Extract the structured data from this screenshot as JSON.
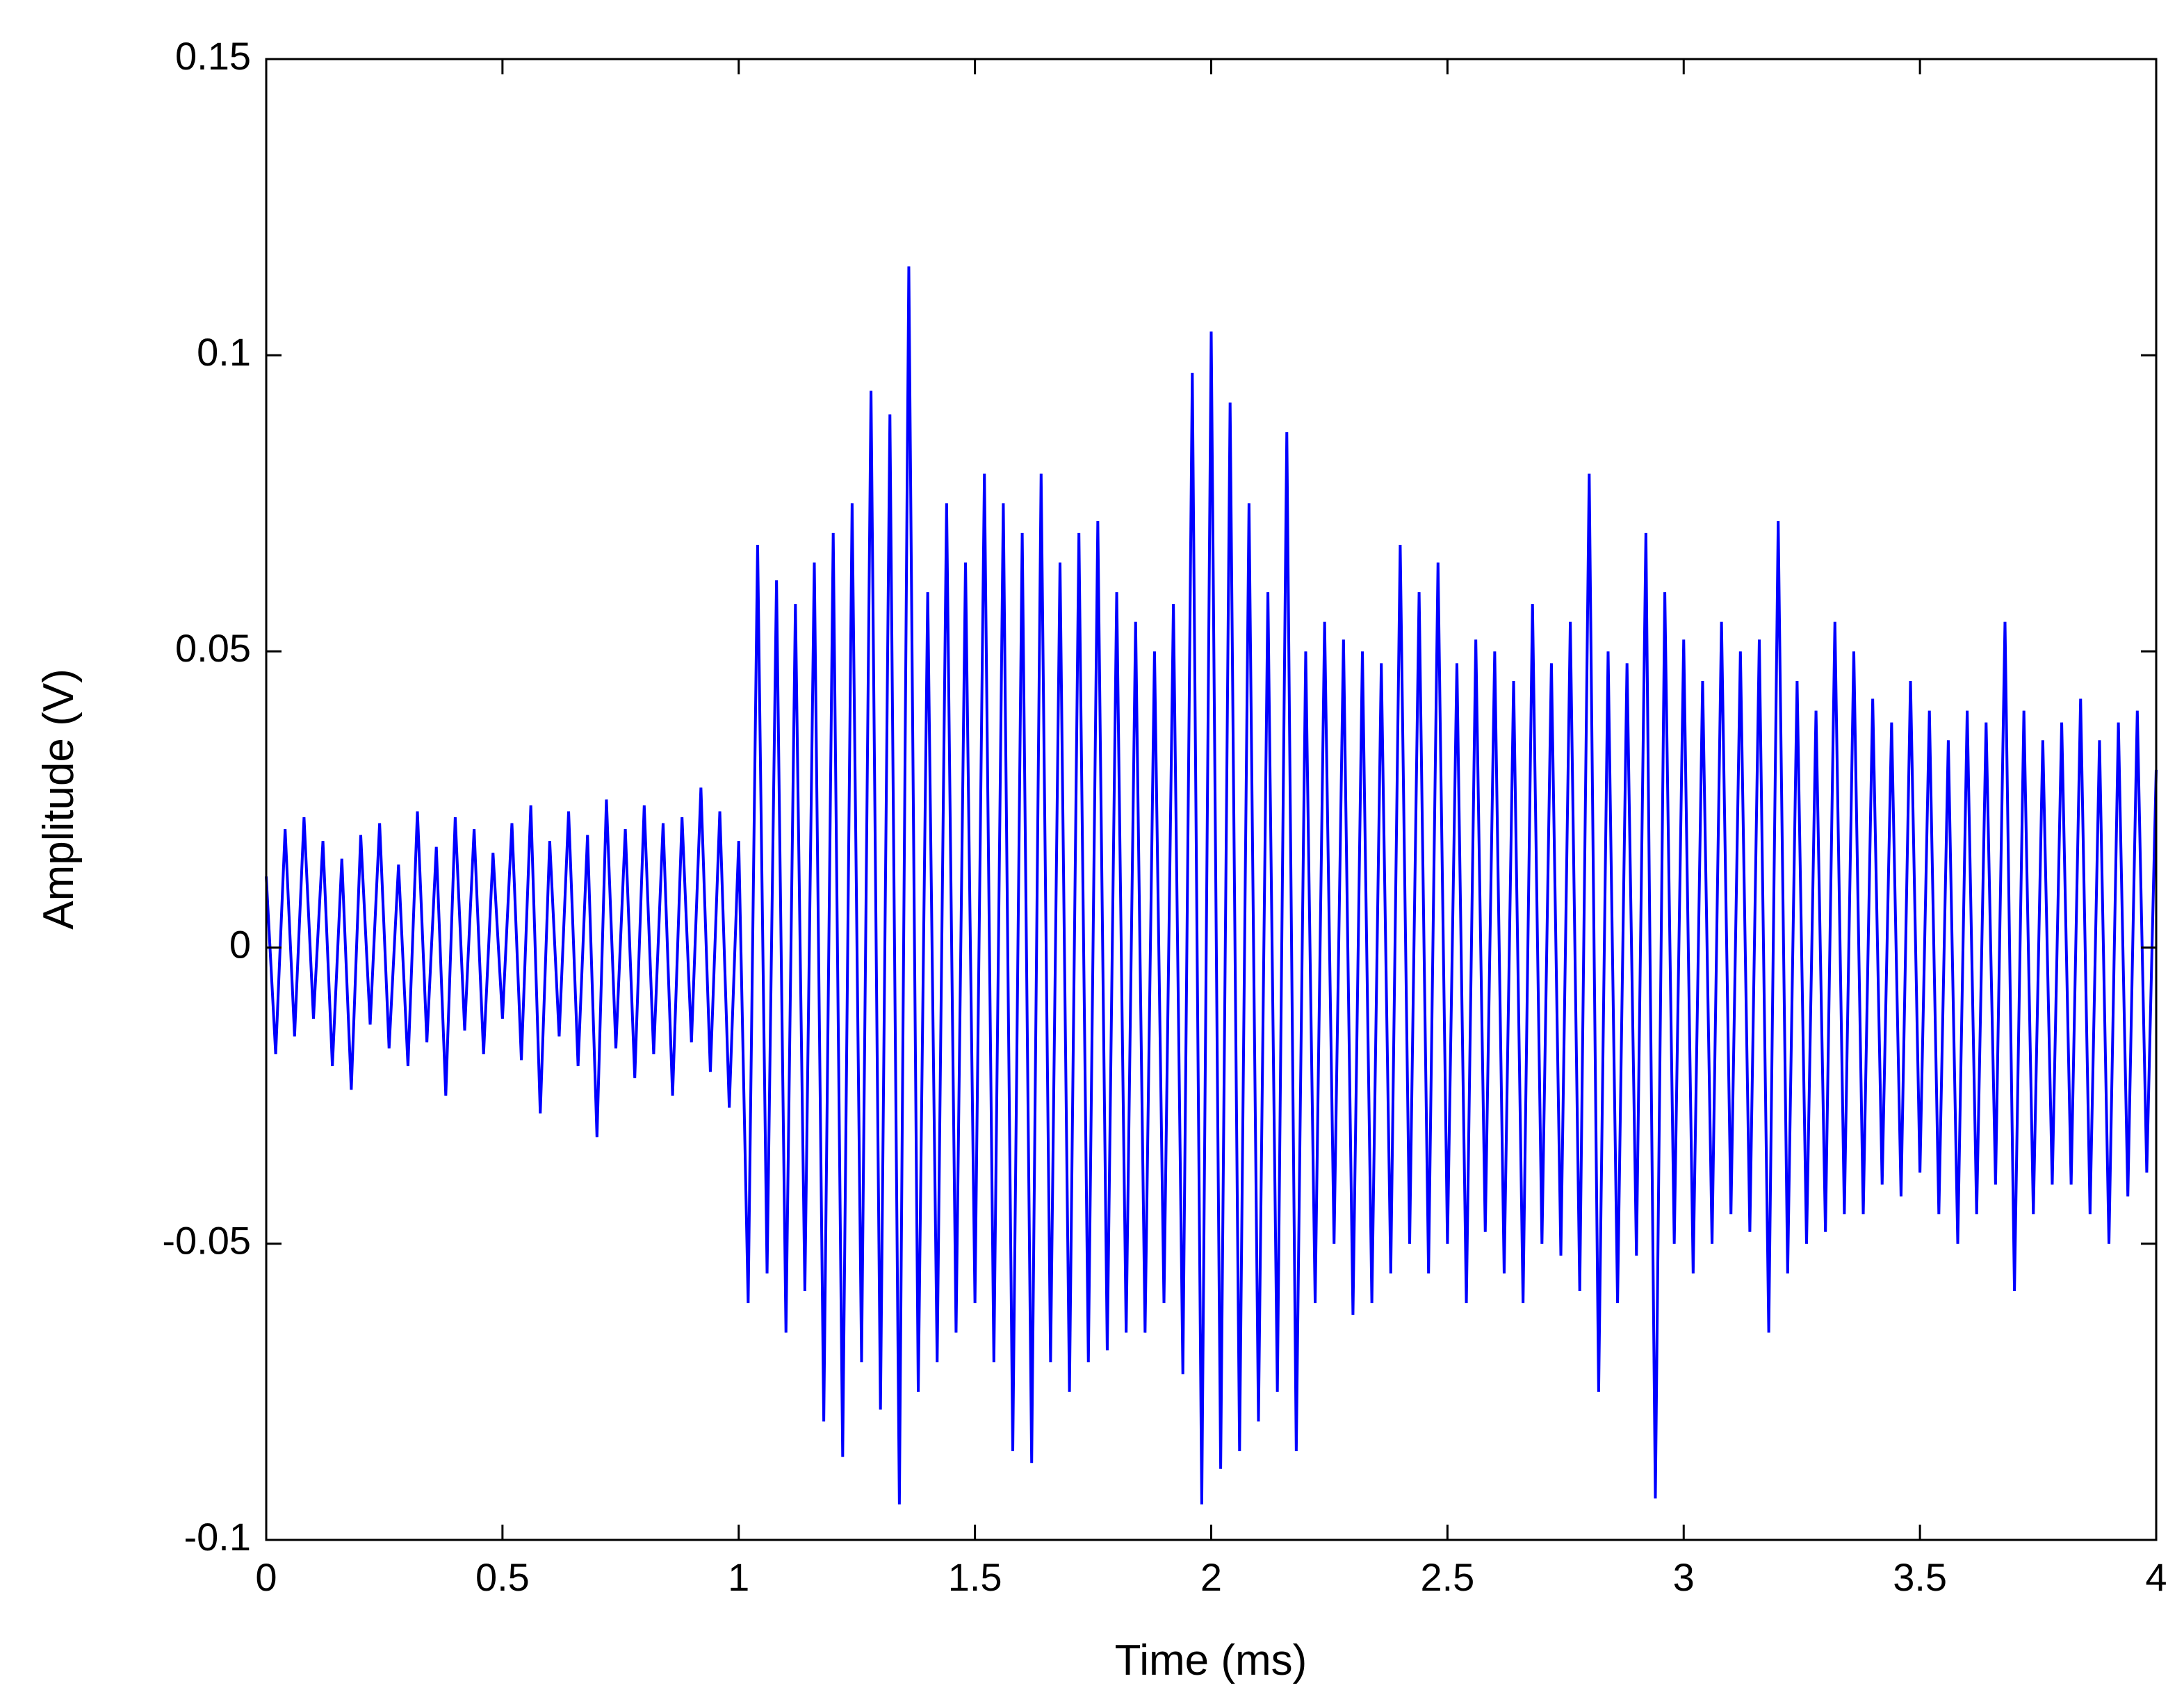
{
  "chart_data": {
    "type": "line",
    "xlabel": "Time (ms)",
    "ylabel": "Amplitude (V)",
    "x": [
      0,
      0.02,
      0.04,
      0.06,
      0.08,
      0.1,
      0.12,
      0.14,
      0.16,
      0.18,
      0.2,
      0.22,
      0.24,
      0.26,
      0.28,
      0.3,
      0.32,
      0.34,
      0.36,
      0.38,
      0.4,
      0.42,
      0.44,
      0.46,
      0.48,
      0.5,
      0.52,
      0.54,
      0.56,
      0.58,
      0.6,
      0.62,
      0.64,
      0.66,
      0.68,
      0.7,
      0.72,
      0.74,
      0.76,
      0.78,
      0.8,
      0.82,
      0.84,
      0.86,
      0.88,
      0.9,
      0.92,
      0.94,
      0.96,
      0.98,
      1,
      1.02,
      1.04,
      1.06,
      1.08,
      1.1,
      1.12,
      1.14,
      1.16,
      1.18,
      1.2,
      1.22,
      1.24,
      1.26,
      1.28,
      1.3,
      1.32,
      1.34,
      1.36,
      1.38,
      1.4,
      1.42,
      1.44,
      1.46,
      1.48,
      1.5,
      1.52,
      1.54,
      1.56,
      1.58,
      1.6,
      1.62,
      1.64,
      1.66,
      1.68,
      1.7,
      1.72,
      1.74,
      1.76,
      1.78,
      1.8,
      1.82,
      1.84,
      1.86,
      1.88,
      1.9,
      1.92,
      1.94,
      1.96,
      1.98,
      2,
      2.02,
      2.04,
      2.06,
      2.08,
      2.1,
      2.12,
      2.14,
      2.16,
      2.18,
      2.2,
      2.22,
      2.24,
      2.26,
      2.28,
      2.3,
      2.32,
      2.34,
      2.36,
      2.38,
      2.4,
      2.42,
      2.44,
      2.46,
      2.48,
      2.5,
      2.52,
      2.54,
      2.56,
      2.58,
      2.6,
      2.62,
      2.64,
      2.66,
      2.68,
      2.7,
      2.72,
      2.74,
      2.76,
      2.78,
      2.8,
      2.82,
      2.84,
      2.86,
      2.88,
      2.9,
      2.92,
      2.94,
      2.96,
      2.98,
      3,
      3.02,
      3.04,
      3.06,
      3.08,
      3.1,
      3.12,
      3.14,
      3.16,
      3.18,
      3.2,
      3.22,
      3.24,
      3.26,
      3.28,
      3.3,
      3.32,
      3.34,
      3.36,
      3.38,
      3.4,
      3.42,
      3.44,
      3.46,
      3.48,
      3.5,
      3.52,
      3.54,
      3.56,
      3.58,
      3.6,
      3.62,
      3.64,
      3.66,
      3.68,
      3.7,
      3.72,
      3.74,
      3.76,
      3.78,
      3.8,
      3.82,
      3.84,
      3.86,
      3.88,
      3.9,
      3.92,
      3.94,
      3.96,
      3.98,
      4
    ],
    "series": [
      {
        "color": "#0000ff",
        "values": [
          0.012,
          -0.018,
          0.02,
          -0.015,
          0.022,
          -0.012,
          0.018,
          -0.02,
          0.015,
          -0.024,
          0.019,
          -0.013,
          0.021,
          -0.017,
          0.014,
          -0.02,
          0.023,
          -0.016,
          0.017,
          -0.025,
          0.022,
          -0.014,
          0.02,
          -0.018,
          0.016,
          -0.012,
          0.021,
          -0.019,
          0.024,
          -0.028,
          0.018,
          -0.015,
          0.023,
          -0.02,
          0.019,
          -0.032,
          0.025,
          -0.017,
          0.02,
          -0.022,
          0.024,
          -0.018,
          0.021,
          -0.025,
          0.022,
          -0.016,
          0.027,
          -0.021,
          0.023,
          -0.027,
          0.018,
          -0.06,
          0.068,
          -0.055,
          0.062,
          -0.065,
          0.058,
          -0.058,
          0.065,
          -0.08,
          0.07,
          -0.086,
          0.075,
          -0.07,
          0.094,
          -0.078,
          0.09,
          -0.094,
          0.115,
          -0.075,
          0.06,
          -0.07,
          0.075,
          -0.065,
          0.065,
          -0.06,
          0.08,
          -0.07,
          0.075,
          -0.085,
          0.07,
          -0.087,
          0.08,
          -0.07,
          0.065,
          -0.075,
          0.07,
          -0.07,
          0.072,
          -0.068,
          0.06,
          -0.065,
          0.055,
          -0.065,
          0.05,
          -0.06,
          0.058,
          -0.072,
          0.097,
          -0.094,
          0.104,
          -0.088,
          0.092,
          -0.085,
          0.075,
          -0.08,
          0.06,
          -0.075,
          0.087,
          -0.085,
          0.05,
          -0.06,
          0.055,
          -0.05,
          0.052,
          -0.062,
          0.05,
          -0.06,
          0.048,
          -0.055,
          0.068,
          -0.05,
          0.06,
          -0.055,
          0.065,
          -0.05,
          0.048,
          -0.06,
          0.052,
          -0.048,
          0.05,
          -0.055,
          0.045,
          -0.06,
          0.058,
          -0.05,
          0.048,
          -0.052,
          0.055,
          -0.058,
          0.08,
          -0.075,
          0.05,
          -0.06,
          0.048,
          -0.052,
          0.07,
          -0.093,
          0.06,
          -0.05,
          0.052,
          -0.055,
          0.045,
          -0.05,
          0.055,
          -0.045,
          0.05,
          -0.048,
          0.052,
          -0.065,
          0.072,
          -0.055,
          0.045,
          -0.05,
          0.04,
          -0.048,
          0.055,
          -0.045,
          0.05,
          -0.045,
          0.042,
          -0.04,
          0.038,
          -0.042,
          0.045,
          -0.038,
          0.04,
          -0.045,
          0.035,
          -0.05,
          0.04,
          -0.045,
          0.038,
          -0.04,
          0.055,
          -0.058,
          0.04,
          -0.045,
          0.035,
          -0.04,
          0.038,
          -0.04,
          0.042,
          -0.045,
          0.035,
          -0.05,
          0.038,
          -0.042,
          0.04,
          -0.038,
          0.03
        ]
      }
    ],
    "xlim": [
      0,
      4
    ],
    "ylim": [
      -0.1,
      0.15
    ],
    "xticks": [
      0,
      0.5,
      1,
      1.5,
      2,
      2.5,
      3,
      3.5,
      4
    ],
    "yticks": [
      -0.1,
      -0.05,
      0,
      0.05,
      0.1,
      0.15
    ],
    "grid": false
  }
}
